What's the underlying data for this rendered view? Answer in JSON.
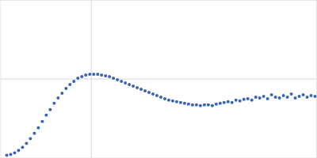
{
  "chart_data": {
    "type": "scatter",
    "color": "#3a64b4",
    "marker": "circle",
    "grid": true,
    "tick_labels": false,
    "xlim": [
      0,
      400
    ],
    "ylim": [
      0,
      200
    ],
    "xticks": [
      115
    ],
    "yticks": [
      100
    ],
    "x": [
      8,
      13,
      18,
      23,
      28,
      33,
      38,
      43,
      48,
      53,
      58,
      63,
      68,
      73,
      78,
      83,
      88,
      93,
      98,
      103,
      108,
      113,
      118,
      123,
      128,
      133,
      138,
      143,
      148,
      153,
      158,
      163,
      168,
      173,
      178,
      183,
      188,
      193,
      198,
      203,
      208,
      213,
      218,
      223,
      228,
      233,
      238,
      243,
      248,
      253,
      258,
      263,
      268,
      273,
      278,
      283,
      288,
      293,
      298,
      303,
      308,
      313,
      318,
      323,
      328,
      333,
      338,
      343,
      348,
      353,
      358,
      363,
      368,
      373,
      378,
      383,
      388,
      393,
      398
    ],
    "values": [
      3,
      4,
      6,
      9,
      13,
      18,
      24,
      31,
      38,
      46,
      54,
      61,
      69,
      76,
      82,
      88,
      93,
      97,
      101,
      103,
      105,
      106,
      106,
      106,
      105,
      104,
      103,
      101,
      99,
      97,
      95,
      93,
      91,
      89,
      87,
      85,
      83,
      81,
      79,
      77,
      75,
      73,
      72,
      71,
      70,
      69,
      68,
      67,
      67,
      66,
      67,
      67,
      66,
      68,
      69,
      70,
      71,
      70,
      73,
      72,
      74,
      75,
      73,
      77,
      76,
      78,
      75,
      80,
      77,
      76,
      79,
      77,
      81,
      76,
      78,
      80,
      77,
      79,
      78
    ]
  }
}
